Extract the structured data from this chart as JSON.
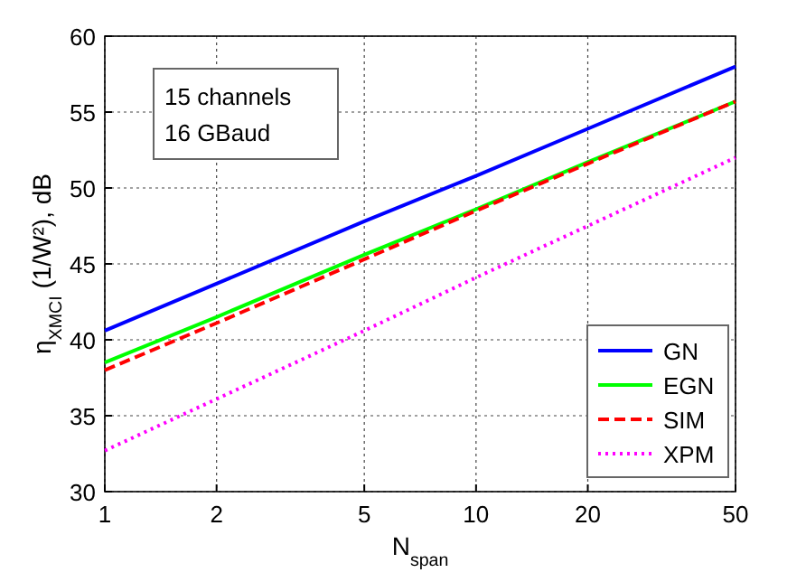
{
  "chart_data": {
    "type": "line",
    "xlabel": "N$_{span}$",
    "ylabel": "η$_{XMCI}$ (1/W²), dB",
    "log": "x",
    "x": [
      1,
      2,
      5,
      10,
      20,
      50
    ],
    "series": [
      {
        "name": "GN",
        "color": "#0000ff",
        "line_style": "solid",
        "values": [
          40.6,
          43.7,
          47.8,
          50.8,
          53.9,
          58.0
        ]
      },
      {
        "name": "EGN",
        "color": "#00ff00",
        "line_style": "solid",
        "values": [
          38.5,
          41.5,
          45.6,
          48.6,
          51.7,
          55.7
        ]
      },
      {
        "name": "SIM",
        "color": "#ff0000",
        "line_style": "dashed",
        "values": [
          38.0,
          41.1,
          45.3,
          48.5,
          51.6,
          55.7
        ]
      },
      {
        "name": "XPM",
        "color": "#ff00ff",
        "line_style": "dotted",
        "values": [
          32.7,
          36.1,
          40.6,
          44.1,
          47.5,
          52.0
        ]
      }
    ],
    "xlim": [
      1,
      50
    ],
    "xticks": [
      1,
      2,
      5,
      10,
      20,
      50
    ],
    "ylim": [
      30,
      60
    ],
    "yticks": [
      30,
      35,
      40,
      45,
      50,
      55,
      60
    ],
    "grid": true,
    "legend": "bottom right",
    "annotations": [
      "15 channels",
      "16 GBaud"
    ]
  }
}
